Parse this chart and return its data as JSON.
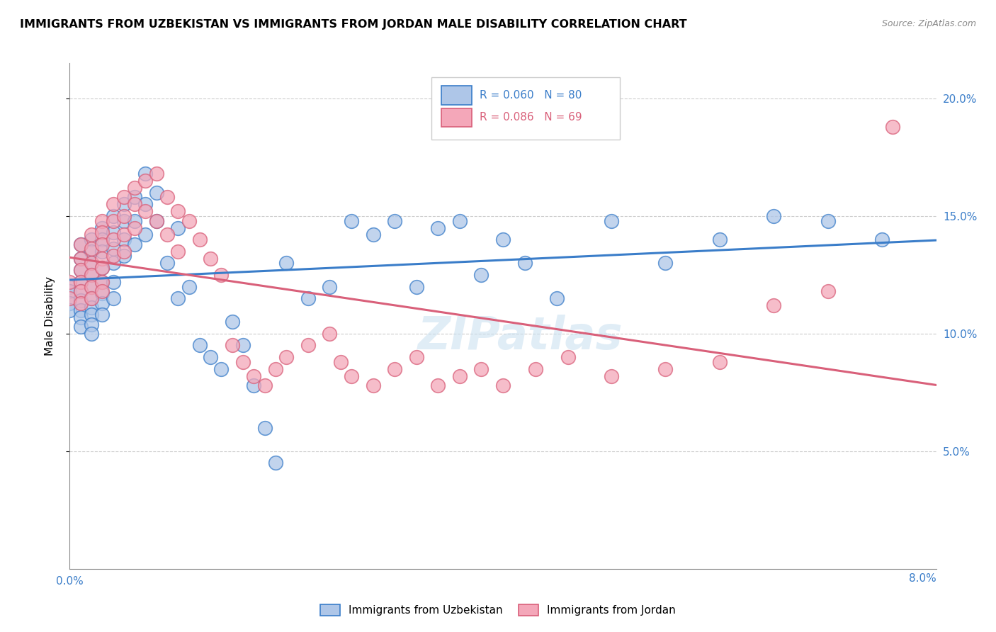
{
  "title": "IMMIGRANTS FROM UZBEKISTAN VS IMMIGRANTS FROM JORDAN MALE DISABILITY CORRELATION CHART",
  "source": "Source: ZipAtlas.com",
  "ylabel": "Male Disability",
  "x_range": [
    0.0,
    0.08
  ],
  "y_range": [
    0.0,
    0.215
  ],
  "legend1_R": "0.060",
  "legend1_N": "80",
  "legend2_R": "0.086",
  "legend2_N": "69",
  "color_uzbekistan": "#aec6e8",
  "color_jordan": "#f4a7b9",
  "color_line_uzbekistan": "#3a7dc9",
  "color_line_jordan": "#d9607a",
  "uzbekistan_x": [
    0.0,
    0.0,
    0.0,
    0.0,
    0.001,
    0.001,
    0.001,
    0.001,
    0.001,
    0.001,
    0.001,
    0.001,
    0.001,
    0.002,
    0.002,
    0.002,
    0.002,
    0.002,
    0.002,
    0.002,
    0.002,
    0.002,
    0.002,
    0.003,
    0.003,
    0.003,
    0.003,
    0.003,
    0.003,
    0.003,
    0.003,
    0.004,
    0.004,
    0.004,
    0.004,
    0.004,
    0.004,
    0.005,
    0.005,
    0.005,
    0.005,
    0.006,
    0.006,
    0.006,
    0.007,
    0.007,
    0.007,
    0.008,
    0.008,
    0.009,
    0.01,
    0.01,
    0.011,
    0.012,
    0.013,
    0.014,
    0.015,
    0.016,
    0.017,
    0.018,
    0.019,
    0.02,
    0.022,
    0.024,
    0.026,
    0.028,
    0.03,
    0.032,
    0.034,
    0.036,
    0.038,
    0.04,
    0.042,
    0.045,
    0.05,
    0.055,
    0.06,
    0.065,
    0.07,
    0.075
  ],
  "uzbekistan_y": [
    0.12,
    0.118,
    0.113,
    0.11,
    0.138,
    0.132,
    0.127,
    0.122,
    0.118,
    0.114,
    0.11,
    0.107,
    0.103,
    0.14,
    0.135,
    0.13,
    0.125,
    0.12,
    0.115,
    0.111,
    0.108,
    0.104,
    0.1,
    0.145,
    0.14,
    0.135,
    0.128,
    0.122,
    0.117,
    0.113,
    0.108,
    0.15,
    0.143,
    0.136,
    0.13,
    0.122,
    0.115,
    0.155,
    0.148,
    0.14,
    0.133,
    0.158,
    0.148,
    0.138,
    0.168,
    0.155,
    0.142,
    0.16,
    0.148,
    0.13,
    0.145,
    0.115,
    0.12,
    0.095,
    0.09,
    0.085,
    0.105,
    0.095,
    0.078,
    0.06,
    0.045,
    0.13,
    0.115,
    0.12,
    0.148,
    0.142,
    0.148,
    0.12,
    0.145,
    0.148,
    0.125,
    0.14,
    0.13,
    0.115,
    0.148,
    0.13,
    0.14,
    0.15,
    0.148,
    0.14
  ],
  "jordan_x": [
    0.0,
    0.0,
    0.001,
    0.001,
    0.001,
    0.001,
    0.001,
    0.001,
    0.002,
    0.002,
    0.002,
    0.002,
    0.002,
    0.002,
    0.003,
    0.003,
    0.003,
    0.003,
    0.003,
    0.003,
    0.003,
    0.004,
    0.004,
    0.004,
    0.004,
    0.005,
    0.005,
    0.005,
    0.005,
    0.006,
    0.006,
    0.006,
    0.007,
    0.007,
    0.008,
    0.008,
    0.009,
    0.009,
    0.01,
    0.01,
    0.011,
    0.012,
    0.013,
    0.014,
    0.015,
    0.016,
    0.017,
    0.018,
    0.019,
    0.02,
    0.022,
    0.024,
    0.025,
    0.026,
    0.028,
    0.03,
    0.032,
    0.034,
    0.036,
    0.038,
    0.04,
    0.043,
    0.046,
    0.05,
    0.055,
    0.06,
    0.065,
    0.07,
    0.076
  ],
  "jordan_y": [
    0.122,
    0.115,
    0.138,
    0.132,
    0.127,
    0.122,
    0.118,
    0.113,
    0.142,
    0.136,
    0.13,
    0.125,
    0.12,
    0.115,
    0.148,
    0.143,
    0.138,
    0.132,
    0.128,
    0.122,
    0.118,
    0.155,
    0.148,
    0.14,
    0.133,
    0.158,
    0.15,
    0.142,
    0.135,
    0.162,
    0.155,
    0.145,
    0.165,
    0.152,
    0.168,
    0.148,
    0.158,
    0.142,
    0.152,
    0.135,
    0.148,
    0.14,
    0.132,
    0.125,
    0.095,
    0.088,
    0.082,
    0.078,
    0.085,
    0.09,
    0.095,
    0.1,
    0.088,
    0.082,
    0.078,
    0.085,
    0.09,
    0.078,
    0.082,
    0.085,
    0.078,
    0.085,
    0.09,
    0.082,
    0.085,
    0.088,
    0.112,
    0.118,
    0.188
  ]
}
